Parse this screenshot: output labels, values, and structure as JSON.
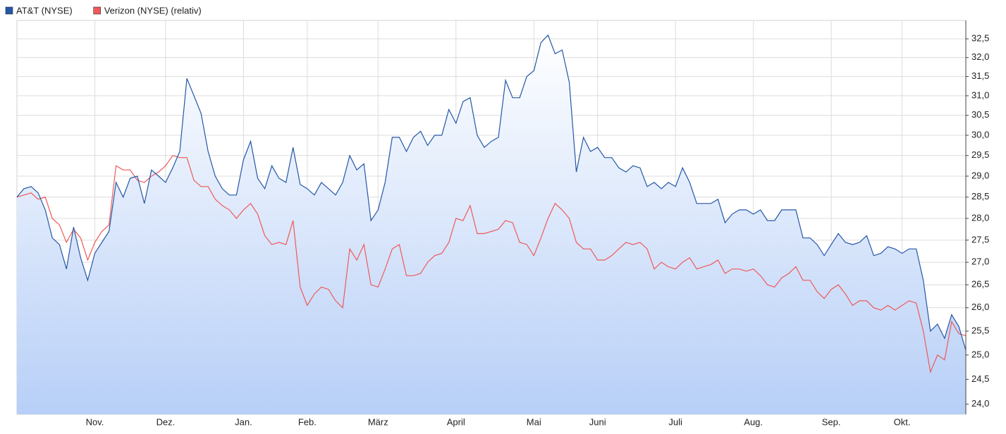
{
  "chart_data": {
    "type": "line",
    "categories": [
      null,
      null,
      null,
      null,
      null,
      null,
      null,
      null,
      null,
      null,
      null,
      "Nov.",
      null,
      null,
      null,
      null,
      null,
      null,
      null,
      null,
      null,
      "Dez.",
      null,
      null,
      null,
      null,
      null,
      null,
      null,
      null,
      null,
      null,
      "Jan.",
      null,
      null,
      null,
      null,
      null,
      null,
      null,
      null,
      "Feb.",
      null,
      null,
      null,
      null,
      null,
      null,
      null,
      null,
      null,
      "März",
      null,
      null,
      null,
      null,
      null,
      null,
      null,
      null,
      null,
      null,
      "April",
      null,
      null,
      null,
      null,
      null,
      null,
      null,
      null,
      null,
      null,
      "Mai",
      null,
      null,
      null,
      null,
      null,
      null,
      null,
      null,
      "Juni",
      null,
      null,
      null,
      null,
      null,
      null,
      null,
      null,
      null,
      null,
      "Juli",
      null,
      null,
      null,
      null,
      null,
      null,
      null,
      null,
      null,
      null,
      "Aug.",
      null,
      null,
      null,
      null,
      null,
      null,
      null,
      null,
      null,
      null,
      "Sep.",
      null,
      null,
      null,
      null,
      null,
      null,
      null,
      null,
      null,
      "Okt.",
      null,
      null,
      null,
      null,
      null,
      null,
      null,
      null,
      null
    ],
    "series": [
      {
        "name": "AT&T (NYSE)",
        "color": "#2457a6",
        "area": true,
        "values": [
          28.5,
          28.7,
          28.75,
          28.6,
          28.2,
          27.55,
          27.4,
          26.85,
          27.8,
          27.1,
          26.6,
          27.2,
          27.45,
          27.7,
          28.85,
          28.5,
          28.95,
          29.0,
          28.35,
          29.15,
          29.0,
          28.85,
          29.2,
          29.6,
          31.45,
          31.0,
          30.55,
          29.6,
          29.0,
          28.7,
          28.55,
          28.55,
          29.4,
          29.85,
          28.95,
          28.7,
          29.25,
          28.95,
          28.85,
          29.7,
          28.8,
          28.7,
          28.55,
          28.85,
          28.7,
          28.55,
          28.85,
          29.5,
          29.15,
          29.3,
          27.95,
          28.2,
          28.85,
          29.95,
          29.95,
          29.6,
          29.95,
          30.1,
          29.75,
          30.0,
          30.0,
          30.65,
          30.3,
          30.85,
          30.95,
          30.0,
          29.7,
          29.85,
          29.95,
          31.4,
          30.95,
          30.95,
          31.5,
          31.65,
          32.4,
          32.6,
          32.1,
          32.2,
          31.35,
          29.1,
          29.95,
          29.6,
          29.7,
          29.45,
          29.45,
          29.2,
          29.1,
          29.25,
          29.2,
          28.75,
          28.85,
          28.7,
          28.85,
          28.75,
          29.2,
          28.85,
          28.35,
          28.35,
          28.35,
          28.45,
          27.9,
          28.1,
          28.2,
          28.2,
          28.1,
          28.2,
          27.95,
          27.95,
          28.2,
          28.2,
          28.2,
          27.55,
          27.55,
          27.4,
          27.15,
          27.4,
          27.65,
          27.45,
          27.4,
          27.45,
          27.6,
          27.15,
          27.2,
          27.35,
          27.3,
          27.2,
          27.3,
          27.3,
          26.6,
          25.5,
          25.65,
          25.35,
          25.85,
          25.6,
          25.1
        ]
      },
      {
        "name": "Verizon (NYSE) (relativ)",
        "color": "#ee5a5a",
        "values": [
          28.5,
          28.55,
          28.6,
          28.45,
          28.5,
          28.0,
          27.85,
          27.45,
          27.75,
          27.55,
          27.05,
          27.45,
          27.7,
          27.85,
          29.25,
          29.15,
          29.15,
          28.9,
          28.85,
          29.0,
          29.1,
          29.25,
          29.5,
          29.45,
          29.45,
          28.9,
          28.75,
          28.75,
          28.45,
          28.3,
          28.2,
          28.0,
          28.2,
          28.35,
          28.1,
          27.6,
          27.4,
          27.45,
          27.4,
          27.95,
          26.45,
          26.05,
          26.3,
          26.45,
          26.4,
          26.15,
          26.0,
          27.3,
          27.05,
          27.4,
          26.5,
          26.45,
          26.85,
          27.3,
          27.4,
          26.7,
          26.7,
          26.75,
          27.0,
          27.15,
          27.2,
          27.45,
          28.0,
          27.95,
          28.3,
          27.65,
          27.65,
          27.7,
          27.75,
          27.95,
          27.9,
          27.45,
          27.4,
          27.15,
          27.55,
          28.0,
          28.35,
          28.2,
          28.0,
          27.45,
          27.3,
          27.3,
          27.05,
          27.05,
          27.15,
          27.3,
          27.45,
          27.4,
          27.45,
          27.3,
          26.85,
          27.0,
          26.9,
          26.85,
          27.0,
          27.1,
          26.85,
          26.9,
          26.95,
          27.05,
          26.75,
          26.85,
          26.85,
          26.8,
          26.85,
          26.7,
          26.5,
          26.45,
          26.65,
          26.75,
          26.9,
          26.6,
          26.6,
          26.35,
          26.2,
          26.4,
          26.5,
          26.3,
          26.05,
          26.15,
          26.15,
          26.0,
          25.95,
          26.05,
          25.95,
          26.05,
          26.15,
          26.1,
          25.5,
          24.65,
          25.0,
          24.9,
          25.7,
          25.45,
          25.4
        ]
      }
    ],
    "ylim": [
      23.8,
      33.0
    ],
    "y_log_scale": true,
    "grid": true,
    "yticks": [
      {
        "value": 24,
        "label": "24,0"
      },
      {
        "value": 24.5,
        "label": "24,5"
      },
      {
        "value": 25,
        "label": "25,0"
      },
      {
        "value": 25.5,
        "label": "25,5"
      },
      {
        "value": 26,
        "label": "26,0"
      },
      {
        "value": 26.5,
        "label": "26,5"
      },
      {
        "value": 27,
        "label": "27,0"
      },
      {
        "value": 27.5,
        "label": "27,5"
      },
      {
        "value": 28,
        "label": "28,0"
      },
      {
        "value": 28.5,
        "label": "28,5"
      },
      {
        "value": 29,
        "label": "29,0"
      },
      {
        "value": 29.5,
        "label": "29,5"
      },
      {
        "value": 30,
        "label": "30,0"
      },
      {
        "value": 30.5,
        "label": "30,5"
      },
      {
        "value": 31,
        "label": "31,0"
      },
      {
        "value": 31.5,
        "label": "31,5"
      },
      {
        "value": 32,
        "label": "32,0"
      },
      {
        "value": 32.5,
        "label": "32,5"
      }
    ],
    "legend": "top-left"
  }
}
